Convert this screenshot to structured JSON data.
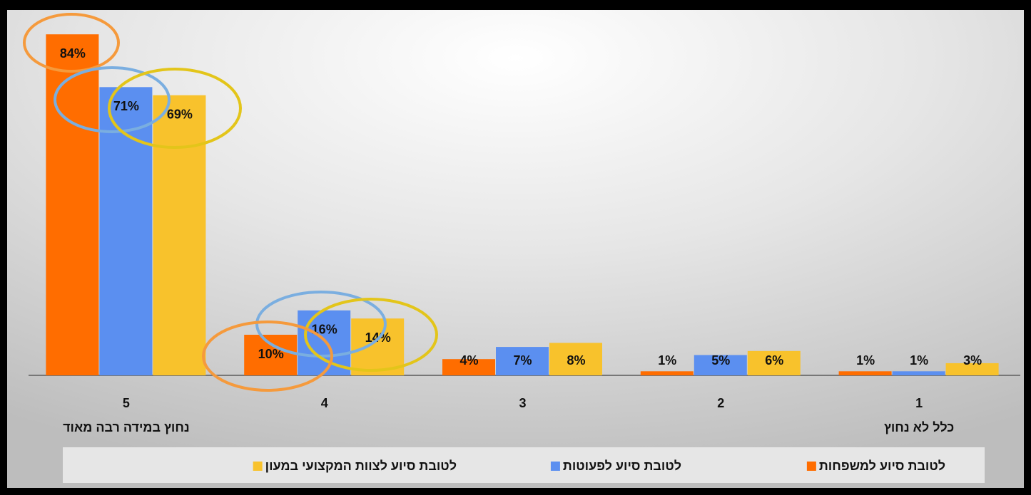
{
  "chart_data": {
    "type": "bar",
    "categories": [
      "5",
      "4",
      "3",
      "2",
      "1"
    ],
    "category_notes": [
      "נחוץ במידה רבה מאוד",
      null,
      null,
      null,
      "כלל לא נחוץ"
    ],
    "series": [
      {
        "name": "לטובת סיוע למשפחות",
        "color": "#ff6d00",
        "values": [
          84,
          10,
          4,
          1,
          1
        ],
        "value_labels": [
          "84%",
          "10%",
          "4%",
          "1%",
          "1%"
        ]
      },
      {
        "name": "לטובת סיוע לפעוטות",
        "color": "#5b8ff0",
        "values": [
          71,
          16,
          7,
          5,
          1
        ],
        "value_labels": [
          "71%",
          "16%",
          "7%",
          "5%",
          "1%"
        ]
      },
      {
        "name": "לטובת סיוע לצוות המקצועי במעון",
        "color": "#f8c22c",
        "values": [
          69,
          14,
          8,
          6,
          3
        ],
        "value_labels": [
          "69%",
          "14%",
          "8%",
          "6%",
          "3%"
        ]
      }
    ],
    "ylim": [
      0,
      90
    ],
    "legend": "bottom"
  }
}
